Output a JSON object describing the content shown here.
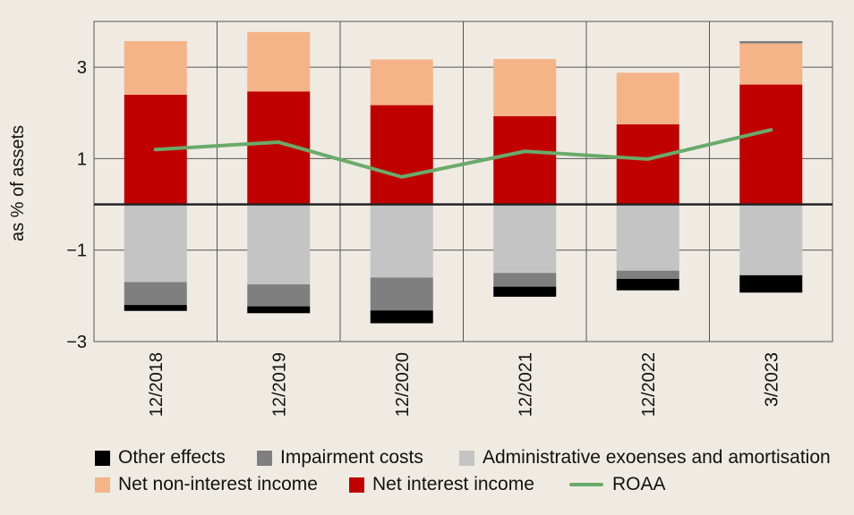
{
  "chart_data": {
    "type": "bar",
    "stacked": true,
    "title": "",
    "xlabel": "",
    "ylabel": "as % of assets",
    "ylim": [
      -3,
      4
    ],
    "yticks": [
      3,
      1,
      -1,
      -3
    ],
    "ytick_labels": [
      "3",
      "1",
      "−1",
      "−3"
    ],
    "grid": true,
    "legend_position": "bottom",
    "categories": [
      "12/2018",
      "12/2019",
      "12/2020",
      "12/2021",
      "12/2022",
      "3/2023"
    ],
    "series": [
      {
        "name": "Net interest income",
        "color": "#c00000",
        "values": [
          2.4,
          2.47,
          2.17,
          1.93,
          1.75,
          2.62
        ]
      },
      {
        "name": "Net non-interest income",
        "color": "#f5b488",
        "values": [
          1.17,
          1.3,
          1.0,
          1.25,
          1.13,
          0.9
        ]
      },
      {
        "name": "Administrative exoenses and amortisation",
        "color": "#c4c4c4",
        "values": [
          -1.7,
          -1.75,
          -1.6,
          -1.5,
          -1.45,
          -1.55
        ]
      },
      {
        "name": "Impairment costs",
        "color": "#7f7f7f",
        "values": [
          -0.5,
          -0.48,
          -0.72,
          -0.3,
          -0.18,
          0.05
        ]
      },
      {
        "name": "Other effects",
        "color": "#000000",
        "values": [
          -0.13,
          -0.15,
          -0.28,
          -0.22,
          -0.25,
          -0.38
        ]
      }
    ],
    "line_series": {
      "name": "ROAA",
      "color": "#6aaa6a",
      "values": [
        1.2,
        1.36,
        0.6,
        1.16,
        0.99,
        1.63
      ]
    }
  },
  "legend_rows": [
    [
      {
        "label": "Other effects",
        "color": "#000000",
        "kind": "box"
      },
      {
        "label": "Impairment costs",
        "color": "#7f7f7f",
        "kind": "box"
      },
      {
        "label": "Administrative exoenses and amortisation",
        "color": "#c4c4c4",
        "kind": "box"
      }
    ],
    [
      {
        "label": "Net non-interest income",
        "color": "#f5b488",
        "kind": "box"
      },
      {
        "label": "Net interest income",
        "color": "#c00000",
        "kind": "box"
      },
      {
        "label": "ROAA",
        "color": "#6aaa6a",
        "kind": "line"
      }
    ]
  ]
}
